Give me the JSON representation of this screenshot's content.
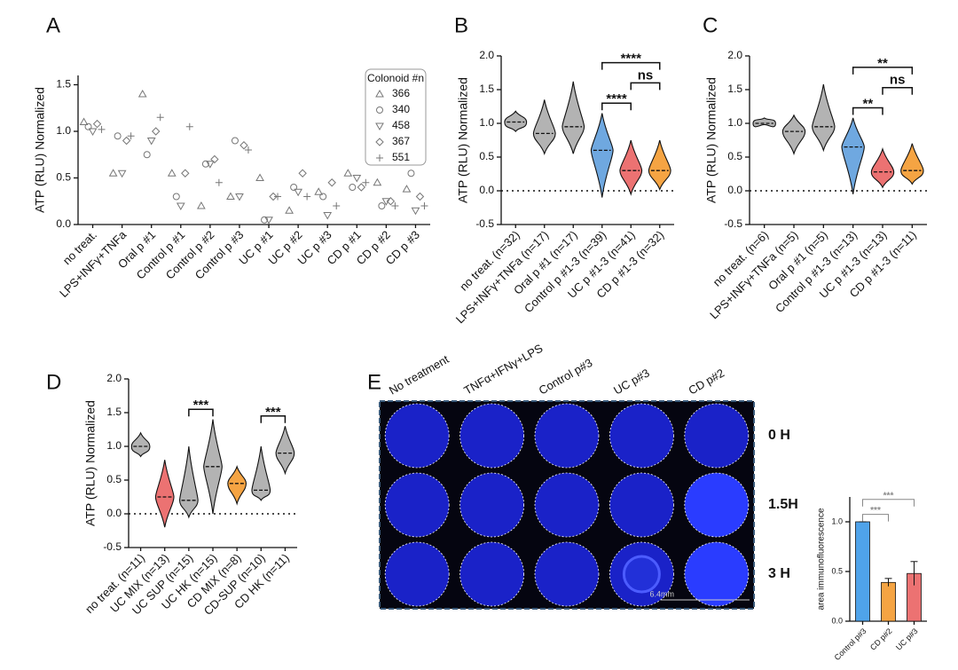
{
  "chart_data": [
    {
      "type": "scatter",
      "panel": "A",
      "y_label": "ATP (RLU) Normalized",
      "categories": [
        "no treat.",
        "LPS+INFγ+TNFa",
        "Oral p #1",
        "Control p #1",
        "Control p #2",
        "Control p #3",
        "UC p #1",
        "UC p #2",
        "UC p #3",
        "CD p #1",
        "CD p #2",
        "CD p #3"
      ],
      "legend_title": "Colonoid #n",
      "series": [
        {
          "name": "366",
          "marker": "triangle-up",
          "color": "#777777",
          "values": [
            1.1,
            0.55,
            1.4,
            0.55,
            0.2,
            0.3,
            0.5,
            0.15,
            0.35,
            0.55,
            0.45,
            0.38
          ]
        },
        {
          "name": "340",
          "marker": "circle",
          "color": "#777777",
          "values": [
            1.05,
            0.95,
            0.75,
            0.3,
            0.65,
            0.9,
            0.05,
            0.4,
            0.3,
            0.4,
            0.2,
            0.55
          ]
        },
        {
          "name": "458",
          "marker": "triangle-down",
          "color": "#777777",
          "values": [
            1.0,
            0.55,
            0.9,
            0.2,
            0.65,
            0.3,
            0.05,
            0.35,
            0.1,
            0.5,
            0.25,
            0.15
          ]
        },
        {
          "name": "367",
          "marker": "diamond",
          "color": "#777777",
          "values": [
            1.08,
            0.9,
            1.0,
            0.55,
            0.7,
            0.85,
            0.3,
            0.55,
            0.45,
            0.4,
            0.25,
            0.3
          ]
        },
        {
          "name": "551",
          "marker": "plus",
          "color": "#777777",
          "values": [
            1.02,
            0.95,
            1.15,
            1.05,
            0.45,
            0.8,
            0.3,
            0.3,
            0.2,
            0.45,
            0.2,
            0.2
          ]
        }
      ],
      "ylim": [
        0,
        1.6
      ],
      "yticks": [
        {
          "value": 0,
          "label": "0.0"
        },
        0.5,
        {
          "value": 1,
          "label": "1.0"
        },
        1.5
      ]
    },
    {
      "type": "violin",
      "panel": "B",
      "y_label": "ATP (RLU) Normalized",
      "categories": [
        "no treat. (n=32)",
        "LPS+INFγ+TNFa (n=17)",
        "Oral p #1 (n=17)",
        "Control p #1-3 (n=39)",
        "UC p #1-3 (n=41)",
        "CD p #1-3 (n=32)"
      ],
      "colors": [
        "#b3b3b3",
        "#b3b3b3",
        "#b3b3b3",
        "#6fa8e0",
        "#ec7272",
        "#f5a443"
      ],
      "min": [
        0.88,
        0.55,
        0.55,
        -0.1,
        -0.05,
        0.02
      ],
      "median": [
        1.02,
        0.85,
        0.95,
        0.6,
        0.3,
        0.3
      ],
      "max": [
        1.18,
        1.35,
        1.62,
        1.15,
        0.75,
        0.75
      ],
      "zero_line": true,
      "annotations": [
        {
          "label": "****",
          "between": [
            "Control p #1-3 (n=39)",
            "CD p #1-3 (n=32)"
          ]
        },
        {
          "label": "****",
          "between": [
            "Control p #1-3 (n=39)",
            "UC p #1-3 (n=41)"
          ]
        },
        {
          "label": "ns",
          "between": [
            "UC p #1-3 (n=41)",
            "CD p #1-3 (n=32)"
          ]
        }
      ],
      "ylim": [
        -0.5,
        2.0
      ],
      "yticks": [
        -0.5,
        {
          "value": 0,
          "label": "0.0"
        },
        0.5,
        {
          "value": 1,
          "label": "1.0"
        },
        1.5,
        {
          "value": 2,
          "label": "2.0"
        }
      ]
    },
    {
      "type": "violin",
      "panel": "C",
      "y_label": "ATP (RLU) Normalized",
      "categories": [
        "no treat. (n=6)",
        "LPS+INFγ+TNFa (n=5)",
        "Oral p #1 (n=5)",
        "Control p #1-3 (n=13)",
        "UC p #1-3 (n=13)",
        "CD p #1-3 (n=11)"
      ],
      "colors": [
        "#b3b3b3",
        "#b3b3b3",
        "#b3b3b3",
        "#6fa8e0",
        "#ec7272",
        "#f5a443"
      ],
      "min": [
        0.98,
        0.55,
        0.6,
        -0.05,
        0.05,
        0.1
      ],
      "median": [
        1.0,
        0.88,
        0.95,
        0.65,
        0.28,
        0.3
      ],
      "max": [
        1.08,
        1.12,
        1.58,
        1.08,
        0.62,
        0.7
      ],
      "zero_line": true,
      "annotations": [
        {
          "label": "**",
          "between": [
            "Control p #1-3 (n=13)",
            "CD p #1-3 (n=11)"
          ]
        },
        {
          "label": "**",
          "between": [
            "Control p #1-3 (n=13)",
            "UC p #1-3 (n=13)"
          ]
        },
        {
          "label": "ns",
          "between": [
            "UC p #1-3 (n=13)",
            "CD p #1-3 (n=11)"
          ]
        }
      ],
      "ylim": [
        -0.5,
        2.0
      ],
      "yticks": [
        -0.5,
        {
          "value": 0,
          "label": "0.0"
        },
        0.5,
        {
          "value": 1,
          "label": "1.0"
        },
        1.5,
        {
          "value": 2,
          "label": "2.0"
        }
      ]
    },
    {
      "type": "violin",
      "panel": "D",
      "y_label": "ATP (RLU) Normalized",
      "categories": [
        "no treat. (n=11)",
        "UC MIX (n=13)",
        "UC SUP (n=15)",
        "UC HK (n=15)",
        "CD MIX (n=8)",
        "CD-SUP (n=10)",
        "CD HK (n=11)"
      ],
      "colors": [
        "#b3b3b3",
        "#ec7272",
        "#b3b3b3",
        "#b3b3b3",
        "#f5a443",
        "#b3b3b3",
        "#b3b3b3"
      ],
      "min": [
        0.85,
        -0.2,
        -0.05,
        0.0,
        0.15,
        0.2,
        0.6
      ],
      "median": [
        1.0,
        0.25,
        0.2,
        0.7,
        0.45,
        0.35,
        0.9
      ],
      "max": [
        1.2,
        0.8,
        1.0,
        1.4,
        0.7,
        1.0,
        1.3
      ],
      "zero_line": true,
      "annotations": [
        {
          "label": "***",
          "between": [
            "UC SUP (n=15)",
            "UC HK (n=15)"
          ]
        },
        {
          "label": "***",
          "between": [
            "CD-SUP (n=10)",
            "CD HK (n=11)"
          ]
        }
      ],
      "ylim": [
        -0.5,
        2.0
      ],
      "yticks": [
        -0.5,
        {
          "value": 0,
          "label": "0.0"
        },
        0.5,
        {
          "value": 1,
          "label": "1.0"
        },
        1.5,
        {
          "value": 2,
          "label": "2.0"
        }
      ]
    },
    {
      "type": "bar",
      "y_label": "area immunofluorescence",
      "categories": [
        "Control p#3",
        "CD p#2",
        "UC p#3"
      ],
      "colors": [
        "#4fa3ea",
        "#f5a443",
        "#ec7272"
      ],
      "values": [
        1.0,
        0.39,
        0.48
      ],
      "errors": [
        0,
        0.04,
        0.12
      ],
      "annotations": [
        {
          "label": "***",
          "between": [
            "Control p#3",
            "CD p#2"
          ]
        },
        {
          "label": "***",
          "between": [
            "Control p#3",
            "UC p#3"
          ]
        }
      ],
      "ylim": [
        0,
        1.25
      ],
      "yticks": [
        {
          "value": 0,
          "label": "0.0"
        },
        0.5,
        {
          "value": 1,
          "label": "1.0"
        }
      ]
    }
  ],
  "image_panel": {
    "panel": "E",
    "columns": [
      "No treatment",
      "TNFα+IFNγ+LPS",
      "Control p#3",
      "UC p#3",
      "CD p#2"
    ],
    "rows": [
      "0 H",
      "1.5H",
      "3 H"
    ],
    "scale_bar": "6.4mm"
  }
}
